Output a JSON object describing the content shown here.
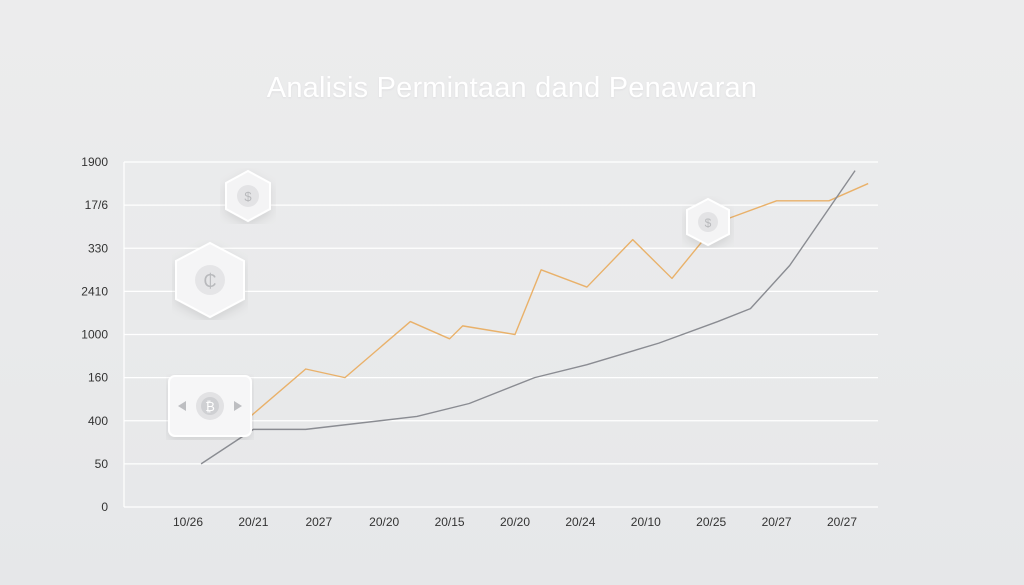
{
  "chart_data": {
    "type": "line",
    "title": "Analisis Permintaan dand Penawaran",
    "xlabel": "",
    "ylabel": "",
    "y_tick_labels": [
      "1900",
      "17/6",
      "330",
      "2410",
      "1000",
      "160",
      "400",
      "50",
      "0"
    ],
    "x_tick_labels": [
      "10/26",
      "20/21",
      "2027",
      "20/20",
      "20/15",
      "20/20",
      "20/24",
      "20/10",
      "20/25",
      "20/27",
      "20/27"
    ],
    "y_index_range": [
      0,
      8
    ],
    "grid": true,
    "legend": "none",
    "series": [
      {
        "color": "#e9b16a",
        "points": [
          [
            0.8,
            1.9
          ],
          [
            1.8,
            3.2
          ],
          [
            2.4,
            3.0
          ],
          [
            3.4,
            4.3
          ],
          [
            4.0,
            3.9
          ],
          [
            4.2,
            4.2
          ],
          [
            5.0,
            4.0
          ],
          [
            5.4,
            5.5
          ],
          [
            6.1,
            5.1
          ],
          [
            6.8,
            6.2
          ],
          [
            7.4,
            5.3
          ],
          [
            8.1,
            6.6
          ],
          [
            9.0,
            7.1
          ],
          [
            9.8,
            7.1
          ],
          [
            10.4,
            7.5
          ]
        ]
      },
      {
        "color": "#8a8c92",
        "points": [
          [
            0.2,
            1.0
          ],
          [
            1.0,
            1.8
          ],
          [
            1.8,
            1.8
          ],
          [
            3.5,
            2.1
          ],
          [
            4.3,
            2.4
          ],
          [
            5.3,
            3.0
          ],
          [
            6.1,
            3.3
          ],
          [
            7.2,
            3.8
          ],
          [
            8.1,
            4.3
          ],
          [
            8.6,
            4.6
          ],
          [
            9.2,
            5.6
          ],
          [
            10.2,
            7.8
          ]
        ]
      }
    ]
  },
  "decorations": [
    {
      "icon": "dollar-coin-hex-icon",
      "glyph": "$"
    },
    {
      "icon": "cedi-coin-hex-icon",
      "glyph": "₵"
    },
    {
      "icon": "bitcoin-card-icon",
      "glyph": "₿"
    },
    {
      "icon": "dollar-coin-hex-icon",
      "glyph": "$"
    }
  ]
}
